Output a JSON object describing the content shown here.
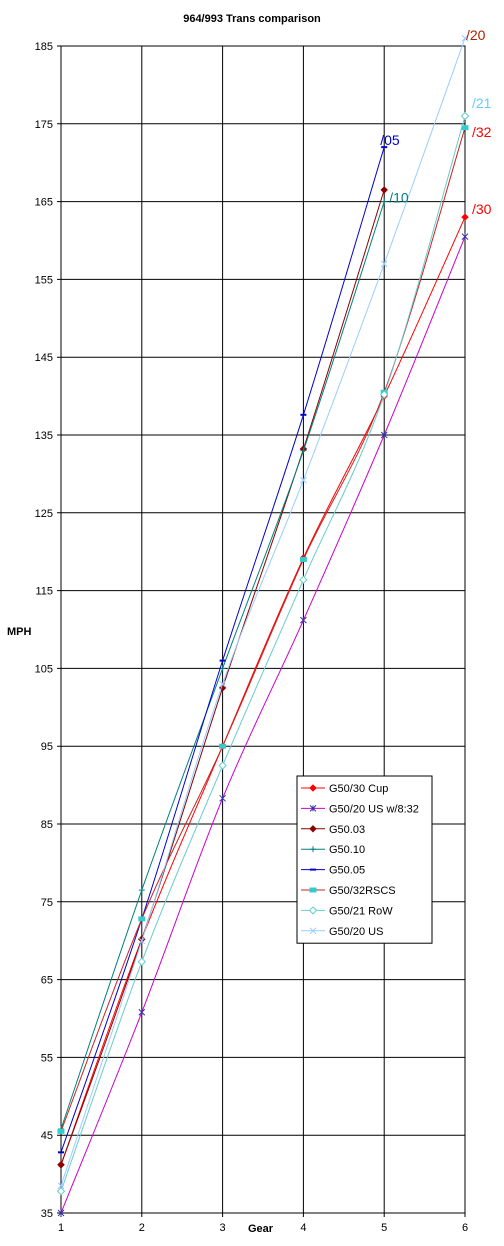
{
  "chart_data": {
    "type": "line",
    "title": "964/993 Trans comparison",
    "xlabel": "Gear",
    "ylabel": "MPH",
    "x": [
      1,
      2,
      3,
      4,
      5,
      6
    ],
    "xlim": [
      1,
      6
    ],
    "ylim": [
      35,
      185
    ],
    "yticks": [
      35,
      45,
      55,
      65,
      75,
      85,
      95,
      105,
      115,
      125,
      135,
      145,
      155,
      165,
      175,
      185
    ],
    "xticks": [
      1,
      2,
      3,
      4,
      5,
      6
    ],
    "grid": true,
    "legend_position": "right-middle",
    "series": [
      {
        "name": "G50/30 Cup",
        "color": "#ff0000",
        "marker": "diamond-filled",
        "values": [
          41.2,
          70.2,
          95.0,
          119.2,
          140.0,
          163.0
        ],
        "end_label": "/30",
        "end_label_color": "#ff0000"
      },
      {
        "name": "G50/20 US w/8:32",
        "color": "#cc00cc",
        "marker": "star",
        "values": [
          35.0,
          60.8,
          88.3,
          111.2,
          135.0,
          160.5
        ],
        "end_label": "",
        "end_label_color": ""
      },
      {
        "name": "G50.03",
        "color": "#8b0000",
        "marker": "diamond-filled",
        "values": [
          41.2,
          70.2,
          102.5,
          133.2,
          166.5,
          null
        ],
        "end_label": "",
        "end_label_color": ""
      },
      {
        "name": "G50.10",
        "color": "#008080",
        "marker": "plus",
        "values": [
          45.8,
          76.5,
          105.0,
          133.0,
          165.0,
          null
        ],
        "end_label": "/10",
        "end_label_color": "#008080"
      },
      {
        "name": "G50.05",
        "color": "#0000cc",
        "marker": "dash",
        "values": [
          42.8,
          72.8,
          106.0,
          137.6,
          172.0,
          null
        ],
        "end_label": "/05",
        "end_label_color": "#0000cc"
      },
      {
        "name": "G50/32RSCS",
        "color": "#cc2222",
        "marker": "square-cyan",
        "values": [
          45.5,
          72.8,
          95.0,
          119.0,
          140.5,
          174.5
        ],
        "end_label": "/32",
        "end_label_color": "#ff0000"
      },
      {
        "name": "G50/21 RoW",
        "color": "#66cccc",
        "marker": "diamond-open",
        "values": [
          37.8,
          67.3,
          92.5,
          116.4,
          140.2,
          176.0
        ],
        "end_label": "/21",
        "end_label_color": "#66ccff"
      },
      {
        "name": "G50/20 US",
        "color": "#99ccff",
        "marker": "x",
        "values": [
          38.5,
          70.0,
          103.0,
          129.2,
          157.0,
          186.0
        ],
        "end_label": "/20",
        "end_label_color": "#aa2200"
      }
    ]
  }
}
